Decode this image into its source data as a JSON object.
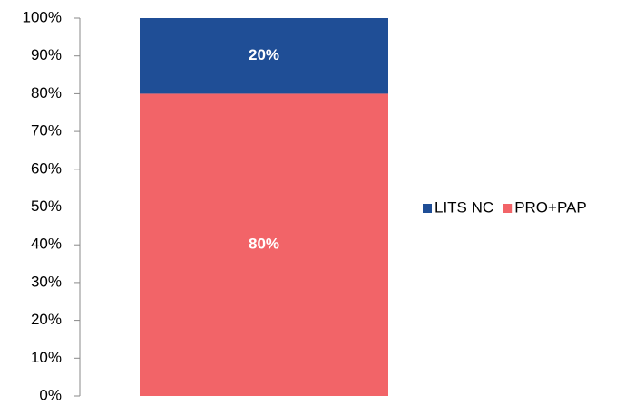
{
  "chart_data": {
    "type": "bar",
    "stacked": true,
    "categories": [
      null
    ],
    "series": [
      {
        "name": "LITS NC",
        "color": "#1f4e96",
        "values": [
          20
        ],
        "value_labels": [
          "20%"
        ]
      },
      {
        "name": "PRO+PAP",
        "color": "#f26468",
        "values": [
          80
        ],
        "value_labels": [
          "80%"
        ]
      }
    ],
    "ylim": [
      0,
      100
    ],
    "yticks": [
      {
        "value": 0,
        "label": "0%"
      },
      {
        "value": 10,
        "label": "10%"
      },
      {
        "value": 20,
        "label": "20%"
      },
      {
        "value": 30,
        "label": "30%"
      },
      {
        "value": 40,
        "label": "40%"
      },
      {
        "value": 50,
        "label": "50%"
      },
      {
        "value": 60,
        "label": "60%"
      },
      {
        "value": 70,
        "label": "70%"
      },
      {
        "value": 80,
        "label": "80%"
      },
      {
        "value": 90,
        "label": "90%"
      },
      {
        "value": 100,
        "label": "100%"
      }
    ],
    "legend": "right",
    "grid": false
  }
}
